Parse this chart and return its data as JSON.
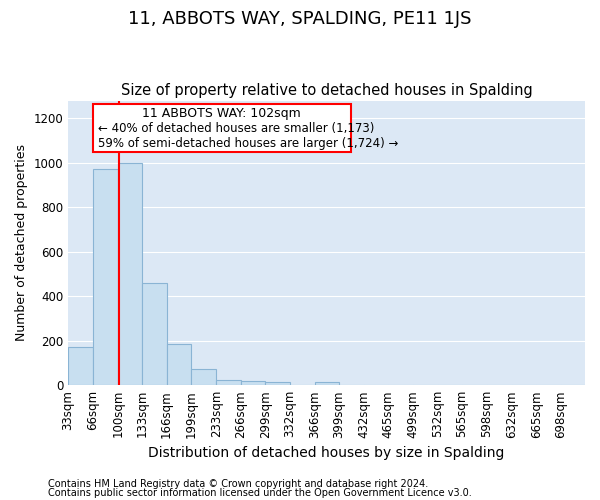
{
  "title": "11, ABBOTS WAY, SPALDING, PE11 1JS",
  "subtitle": "Size of property relative to detached houses in Spalding",
  "xlabel": "Distribution of detached houses by size in Spalding",
  "ylabel": "Number of detached properties",
  "footnote1": "Contains HM Land Registry data © Crown copyright and database right 2024.",
  "footnote2": "Contains public sector information licensed under the Open Government Licence v3.0.",
  "annotation_line1": "11 ABBOTS WAY: 102sqm",
  "annotation_line2": "← 40% of detached houses are smaller (1,173)",
  "annotation_line3": "59% of semi-detached houses are larger (1,724) →",
  "bar_color": "#c8dff0",
  "bar_edge_color": "#8ab4d4",
  "red_line_x": 102,
  "bin_edges": [
    33,
    66,
    100,
    133,
    166,
    199,
    233,
    266,
    299,
    332,
    366,
    399,
    432,
    465,
    499,
    532,
    565,
    598,
    632,
    665,
    698,
    731
  ],
  "bin_labels": [
    "33sqm",
    "66sqm",
    "100sqm",
    "133sqm",
    "166sqm",
    "199sqm",
    "233sqm",
    "266sqm",
    "299sqm",
    "332sqm",
    "366sqm",
    "399sqm",
    "432sqm",
    "465sqm",
    "499sqm",
    "532sqm",
    "565sqm",
    "598sqm",
    "632sqm",
    "665sqm",
    "698sqm"
  ],
  "values": [
    170,
    970,
    1000,
    460,
    185,
    75,
    25,
    20,
    15,
    0,
    15,
    0,
    0,
    0,
    0,
    0,
    0,
    0,
    0,
    0,
    0
  ],
  "ylim": [
    0,
    1280
  ],
  "yticks": [
    0,
    200,
    400,
    600,
    800,
    1000,
    1200
  ],
  "plot_bg_color": "#dce8f5",
  "fig_bg_color": "#ffffff",
  "grid_color": "#ffffff",
  "title_fontsize": 13,
  "subtitle_fontsize": 10.5,
  "xlabel_fontsize": 10,
  "ylabel_fontsize": 9,
  "tick_fontsize": 8.5,
  "footnote_fontsize": 7
}
